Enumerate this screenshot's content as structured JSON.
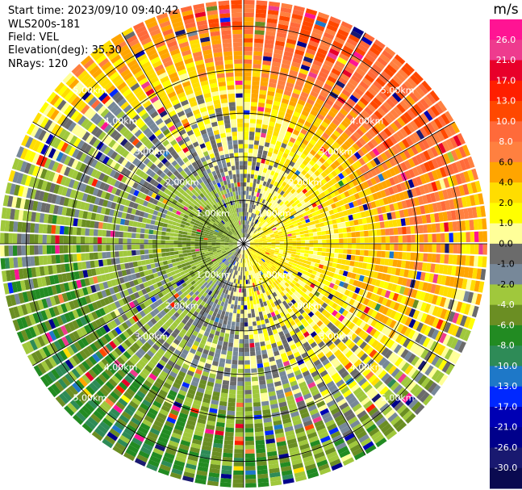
{
  "chart_data": {
    "type": "heatmap",
    "subtype": "ppi-polar",
    "header": {
      "start_time_label": "Start time:",
      "start_time": "2023/09/10 09:40:42",
      "instrument": "WLS200s-181",
      "field_label": "Field:",
      "field": "VEL",
      "elevation_label": "Elevation(deg):",
      "elevation": "35.30",
      "nrays_label": "NRays:",
      "nrays": "120"
    },
    "range_rings_km": [
      1.0,
      2.0,
      3.0,
      4.0,
      5.0
    ],
    "range_ring_labels": [
      "1.00km",
      "2.00km",
      "3.00km",
      "4.00km",
      "5.00km"
    ],
    "max_range_km": 5.6,
    "azimuth_spokes_deg": [
      0,
      30,
      60,
      90,
      120,
      150,
      180,
      210,
      240,
      270,
      300,
      330
    ],
    "colorbar": {
      "unit": "m/s",
      "ticks": [
        "26.0",
        "21.0",
        "17.0",
        "13.0",
        "10.0",
        "8.0",
        "6.0",
        "4.0",
        "2.0",
        "1.0",
        "0.0",
        "-1.0",
        "-2.0",
        "-4.0",
        "-6.0",
        "-8.0",
        "-10.0",
        "-13.0",
        "-17.0",
        "-21.0",
        "-26.0",
        "-30.0"
      ],
      "colors": [
        "#ff1493",
        "#ee3b8e",
        "#e8002a",
        "#ff1f00",
        "#ff4800",
        "#ff6a3a",
        "#ff8040",
        "#ffa500",
        "#ffdd00",
        "#ffff00",
        "#ffff99",
        "#6b6b6b",
        "#778899",
        "#a0c83c",
        "#6b8e23",
        "#228b22",
        "#2e8b57",
        "#1e78c8",
        "#0028ff",
        "#0000b4",
        "#00008b",
        "#191970",
        "#0a0a50"
      ]
    },
    "velocity_pattern": {
      "description_free": true,
      "ring_profile": [
        {
          "r": 0.2,
          "toward": -4,
          "away": 2
        },
        {
          "r": 1.0,
          "toward": -5,
          "away": 2
        },
        {
          "r": 2.0,
          "toward": -3,
          "away": 2
        },
        {
          "r": 3.0,
          "toward": -2,
          "away": 4
        },
        {
          "r": 4.0,
          "toward": -6,
          "away": 8
        },
        {
          "r": 5.6,
          "toward": -7,
          "away": 10
        }
      ]
    }
  }
}
